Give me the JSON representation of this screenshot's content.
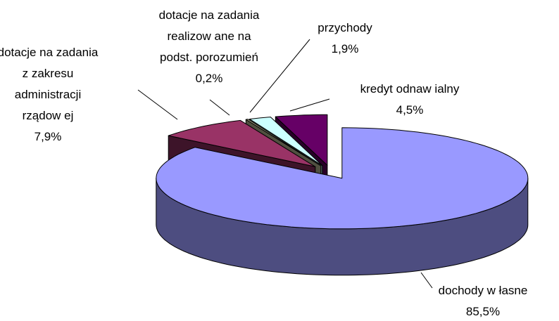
{
  "chart_data": {
    "type": "pie3d",
    "categories": [
      "dochody w łasne",
      "dotacje na zadania\nz zakresu\nadministracji\nrządow ej",
      "dotacje na zadania\nrealizow ane na\npodst. porozumień",
      "przychody",
      "kredyt odnaw ialny"
    ],
    "values": [
      85.5,
      7.9,
      0.2,
      1.9,
      4.5
    ],
    "value_labels": [
      "85,5%",
      "7,9%",
      "0,2%",
      "1,9%",
      "4,5%"
    ],
    "colors": [
      "#9999FF",
      "#993366",
      "#C8C8A0",
      "#CCFFFF",
      "#660066"
    ]
  }
}
